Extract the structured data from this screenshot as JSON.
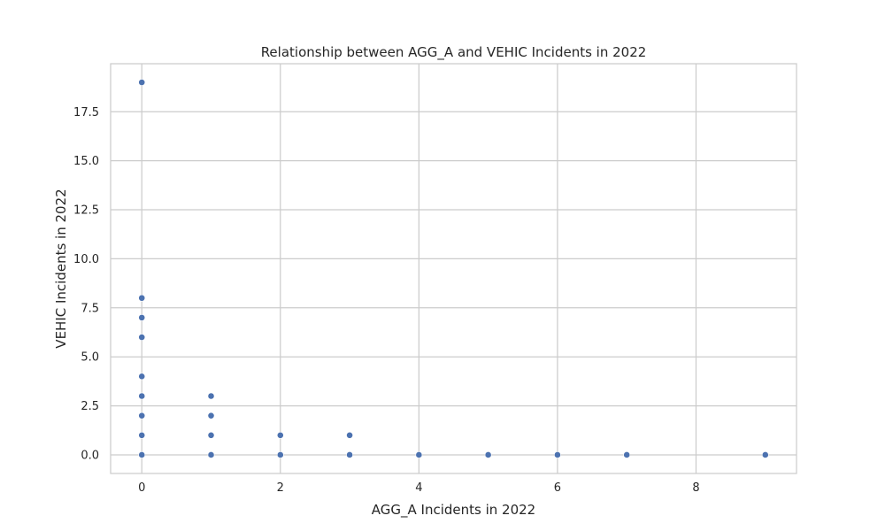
{
  "chart_data": {
    "type": "scatter",
    "title": "Relationship between AGG_A and VEHIC Incidents in 2022",
    "xlabel": "AGG_A Incidents in 2022",
    "ylabel": "VEHIC Incidents in 2022",
    "xlim": [
      -0.45,
      9.45
    ],
    "ylim": [
      -0.95,
      19.95
    ],
    "xticks": [
      0,
      2,
      4,
      6,
      8
    ],
    "xtick_labels": [
      "0",
      "2",
      "4",
      "6",
      "8"
    ],
    "yticks": [
      0,
      2.5,
      5,
      7.5,
      10,
      12.5,
      15,
      17.5
    ],
    "ytick_labels": [
      "0.0",
      "2.5",
      "5.0",
      "7.5",
      "10.0",
      "12.5",
      "15.0",
      "17.5"
    ],
    "grid": true,
    "point_color": "#4c72b0",
    "grid_color": "#cccccc",
    "points": [
      {
        "x": 0,
        "y": 19
      },
      {
        "x": 0,
        "y": 8
      },
      {
        "x": 0,
        "y": 7
      },
      {
        "x": 0,
        "y": 6
      },
      {
        "x": 0,
        "y": 4
      },
      {
        "x": 0,
        "y": 3
      },
      {
        "x": 0,
        "y": 2
      },
      {
        "x": 0,
        "y": 1
      },
      {
        "x": 0,
        "y": 0
      },
      {
        "x": 1,
        "y": 3
      },
      {
        "x": 1,
        "y": 2
      },
      {
        "x": 1,
        "y": 1
      },
      {
        "x": 1,
        "y": 0
      },
      {
        "x": 2,
        "y": 1
      },
      {
        "x": 2,
        "y": 0
      },
      {
        "x": 3,
        "y": 1
      },
      {
        "x": 3,
        "y": 0
      },
      {
        "x": 4,
        "y": 0
      },
      {
        "x": 5,
        "y": 0
      },
      {
        "x": 6,
        "y": 0
      },
      {
        "x": 7,
        "y": 0
      },
      {
        "x": 9,
        "y": 0
      }
    ]
  }
}
